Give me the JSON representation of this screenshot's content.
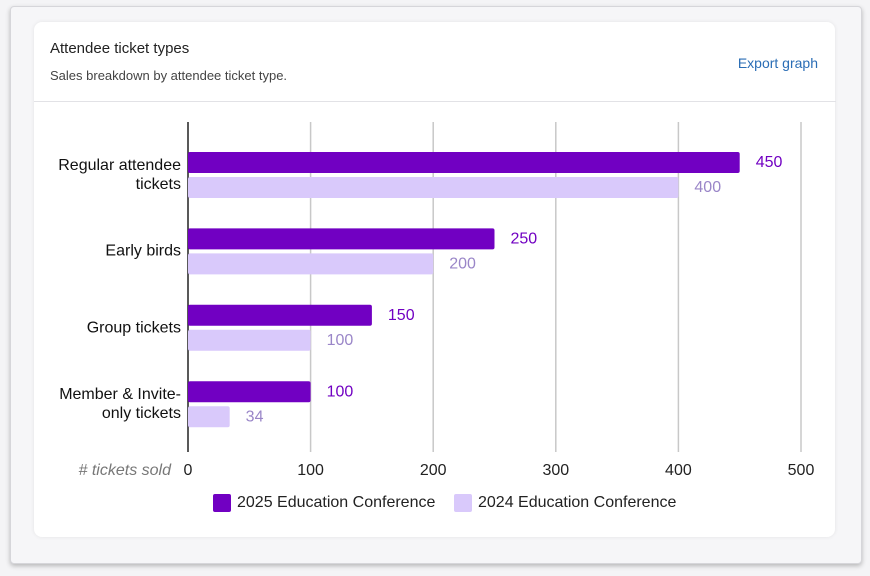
{
  "export_label": "Export graph",
  "chart_data": {
    "type": "barh",
    "title": "Attendee ticket types",
    "subtitle": "Sales breakdown by attendee ticket type.",
    "xlabel": "# tickets sold",
    "categories": [
      "Regular attendee tickets",
      "Early birds",
      "Group tickets",
      "Member & Invite-only tickets"
    ],
    "series": [
      {
        "name": "2025 Education Conference",
        "color": "#7100c2",
        "values": [
          450,
          250,
          150,
          100
        ]
      },
      {
        "name": "2024 Education Conference",
        "color": "#d9c9fb",
        "values": [
          400,
          200,
          100,
          34
        ]
      }
    ],
    "xlim": [
      0,
      500
    ],
    "xticks": [
      0,
      100,
      200,
      300,
      400,
      500
    ],
    "grid": true
  }
}
